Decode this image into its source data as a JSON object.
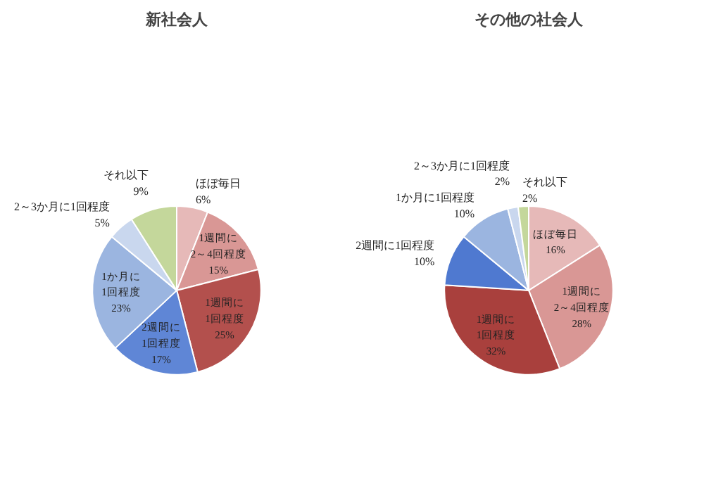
{
  "chart_data": [
    {
      "type": "pie",
      "title": "新社会人",
      "categories": [
        "ほぼ毎日",
        "1週間に2～4回程度",
        "1週間に1回程度",
        "2週間に1回程度",
        "1か月に1回程度",
        "2～3か月に1回程度",
        "それ以下"
      ],
      "values": [
        6,
        15,
        25,
        17,
        23,
        5,
        9
      ],
      "value_labels": [
        "6%",
        "15%",
        "25%",
        "17%",
        "23%",
        "5%",
        "9%"
      ],
      "colors": [
        "#e6b9b8",
        "#d99795",
        "#b3504d",
        "#5f86d6",
        "#9bb5e0",
        "#c9d7ee",
        "#c4d79b"
      ]
    },
    {
      "type": "pie",
      "title": "その他の社会人",
      "categories": [
        "ほぼ毎日",
        "1週間に2～4回程度",
        "1週間に1回程度",
        "2週間に1回程度",
        "1か月に1回程度",
        "2～3か月に1回程度",
        "それ以下"
      ],
      "values": [
        16,
        28,
        32,
        10,
        10,
        2,
        2
      ],
      "value_labels": [
        "16%",
        "28%",
        "32%",
        "10%",
        "10%",
        "2%",
        "2%"
      ],
      "colors": [
        "#e6b9b8",
        "#d99795",
        "#a9403d",
        "#4f79d0",
        "#9bb5e0",
        "#c9d7ee",
        "#c4d79b"
      ]
    }
  ]
}
